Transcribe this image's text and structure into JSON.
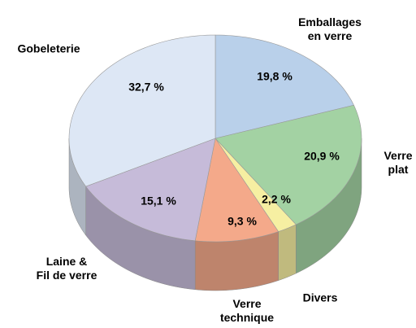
{
  "chart_data": {
    "type": "pie",
    "categories": [
      "Emballages\nen verre",
      "Verre\nplat",
      "Divers",
      "Verre\ntechnique",
      "Laine &\nFil de verre",
      "Gobeleterie"
    ],
    "values": [
      19.8,
      20.9,
      2.2,
      9.3,
      15.1,
      32.7
    ],
    "value_labels": [
      "19,8 %",
      "20,9 %",
      "2,2 %",
      "9,3 %",
      "15,1 %",
      "32,7 %"
    ],
    "colors": [
      "#b9d0ea",
      "#a3d2a3",
      "#f6efa2",
      "#f4a98a",
      "#c6bbd9",
      "#dde7f5"
    ]
  }
}
